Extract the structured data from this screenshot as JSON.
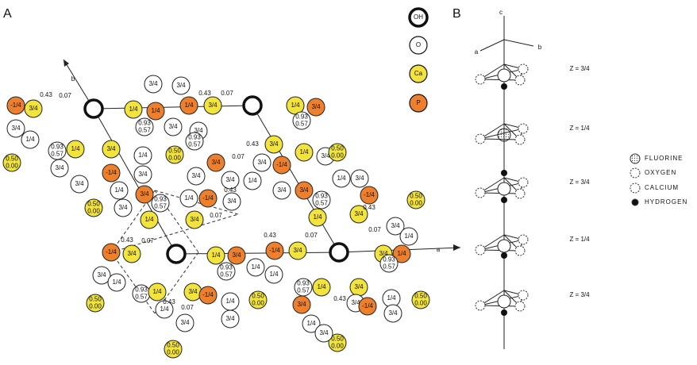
{
  "panel_a": {
    "label": "A",
    "legend": [
      "OH",
      "O",
      "Ca",
      "P"
    ],
    "axis_labels": [
      "b",
      "a"
    ],
    "atoms": [
      [
        "3/4"
      ],
      [
        "3/4"
      ],
      [
        "1/4"
      ],
      [
        "1/4"
      ],
      [
        "1/4"
      ],
      [
        "3/4"
      ],
      [
        "0.93",
        "0.57"
      ],
      [
        "3/4"
      ],
      [
        "3/4"
      ],
      [
        "1/4"
      ],
      [
        "3/4"
      ],
      [
        "0.93",
        "0.57"
      ],
      [
        "-1/4"
      ],
      [
        "3/4"
      ],
      [
        "3/4"
      ],
      [
        "1/4"
      ],
      [
        "0.93",
        "0.57"
      ],
      [
        "1/4"
      ],
      [
        "3/4"
      ],
      [
        "3/4"
      ],
      [
        "3/4"
      ],
      [
        "-1/4"
      ],
      [
        "1/4"
      ],
      [
        "3/4"
      ],
      [
        "1/4"
      ],
      [
        "3/4"
      ],
      [
        "3/4"
      ],
      [
        "0.93",
        "0.57"
      ],
      [
        "1/4"
      ],
      [
        "0.93",
        "0.57"
      ],
      [
        "3/4"
      ],
      [
        "3/4"
      ],
      [
        "1/4"
      ],
      [
        "-1/4"
      ],
      [
        "3/4"
      ],
      [
        "3/4"
      ],
      [
        "3/4"
      ],
      [
        "3/4"
      ],
      [
        "3/4"
      ],
      [
        "-1/4"
      ],
      [
        "1/4"
      ],
      [
        "3/4"
      ],
      [
        "3/4"
      ],
      [
        "1/4"
      ],
      [
        "3/4"
      ],
      [
        "0.93",
        "0.57"
      ],
      [
        "1/4"
      ],
      [
        "1/4"
      ],
      [
        "3/4"
      ],
      [
        "-1/4"
      ],
      [
        "3/4"
      ],
      [
        "3/4"
      ],
      [
        "1/4"
      ],
      [
        "0.50",
        "0.00"
      ],
      [
        "0.50",
        "0.00"
      ],
      [
        "0.50",
        "0.00"
      ],
      [
        "0.50",
        "0.00"
      ],
      [
        "0.50",
        "0.00"
      ],
      [
        "-1/4"
      ],
      [
        "3/4"
      ],
      [
        "1/4"
      ],
      [
        "3/4"
      ],
      [
        "-1/4"
      ],
      [
        "3/4"
      ],
      [
        "0.93",
        "0.57"
      ],
      [
        "1/4"
      ],
      [
        "1/4"
      ],
      [
        "3/4"
      ],
      [
        "1/4"
      ],
      [
        "0.93",
        "0.57"
      ],
      [
        "3/4"
      ],
      [
        "1/4"
      ],
      [
        "0.93",
        "0.57"
      ],
      [
        "1/4"
      ],
      [
        "3/4"
      ],
      [
        "-1/4"
      ],
      [
        "1/4"
      ],
      [
        "3/4"
      ],
      [
        "1/4"
      ],
      [
        "3/4"
      ],
      [
        "0.50",
        "0.00"
      ],
      [
        "0.50",
        "0.00"
      ],
      [
        "0.50",
        "0.00"
      ],
      [
        "0.50",
        "0.00"
      ],
      [
        "0.50",
        "0.00"
      ],
      [
        "0.93",
        "0.57"
      ],
      [
        "1/4"
      ],
      [
        "3/4"
      ],
      [
        "3/4"
      ],
      [
        "3/4"
      ],
      [
        "-1/4"
      ],
      [
        "1/4"
      ],
      [
        "3/4"
      ],
      [
        "1/4"
      ],
      [
        "3/4"
      ]
    ],
    "annotations": [
      "0.43",
      "0.07",
      "0.43",
      "0.07",
      "0.43",
      "0.07",
      "0.43",
      "0.07",
      "0.43",
      "0.07",
      "0.43",
      "0.07",
      "0.43",
      "0.07",
      "0.43",
      "0.07",
      "0.43"
    ]
  },
  "panel_b": {
    "label": "B",
    "axis_labels": [
      "c",
      "a",
      "b"
    ],
    "layers": [
      "Z = 3/4",
      "Z = 1/4",
      "Z = 3/4",
      "Z = 1/4",
      "Z = 3/4"
    ],
    "legend": [
      "FLUORINE",
      "OXYGEN",
      "CALCIUM",
      "HYDROGEN"
    ]
  }
}
